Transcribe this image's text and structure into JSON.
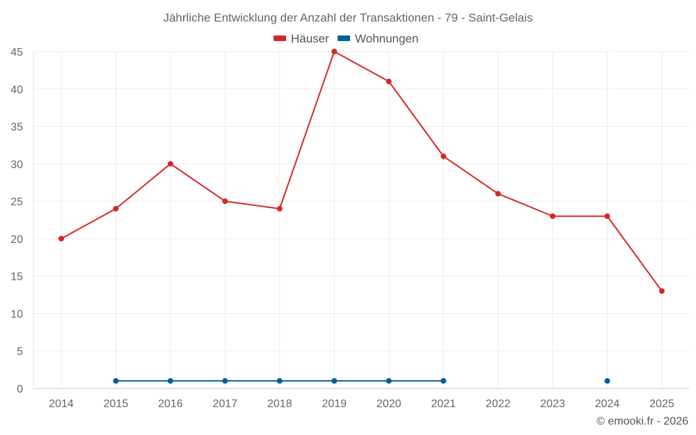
{
  "chart_data": {
    "type": "line",
    "title": "Jährliche Entwicklung der Anzahl der Transaktionen - 79 - Saint-Gelais",
    "categories": [
      "2014",
      "2015",
      "2016",
      "2017",
      "2018",
      "2019",
      "2020",
      "2021",
      "2022",
      "2023",
      "2024",
      "2025"
    ],
    "series": [
      {
        "name": "Häuser",
        "color": "#d62728",
        "values": [
          20,
          24,
          30,
          25,
          24,
          45,
          41,
          31,
          26,
          23,
          23,
          13
        ]
      },
      {
        "name": "Wohnungen",
        "color": "#005f9e",
        "values": [
          null,
          1,
          1,
          1,
          1,
          1,
          1,
          1,
          null,
          null,
          1,
          null
        ]
      }
    ],
    "ylim": [
      0,
      45
    ],
    "yticks": [
      "0",
      "5",
      "10",
      "15",
      "20",
      "25",
      "30",
      "35",
      "40",
      "45"
    ],
    "xlabel": "",
    "ylabel": "",
    "grid": true,
    "legend": "top-center"
  },
  "credit": "© emooki.fr - 2026"
}
